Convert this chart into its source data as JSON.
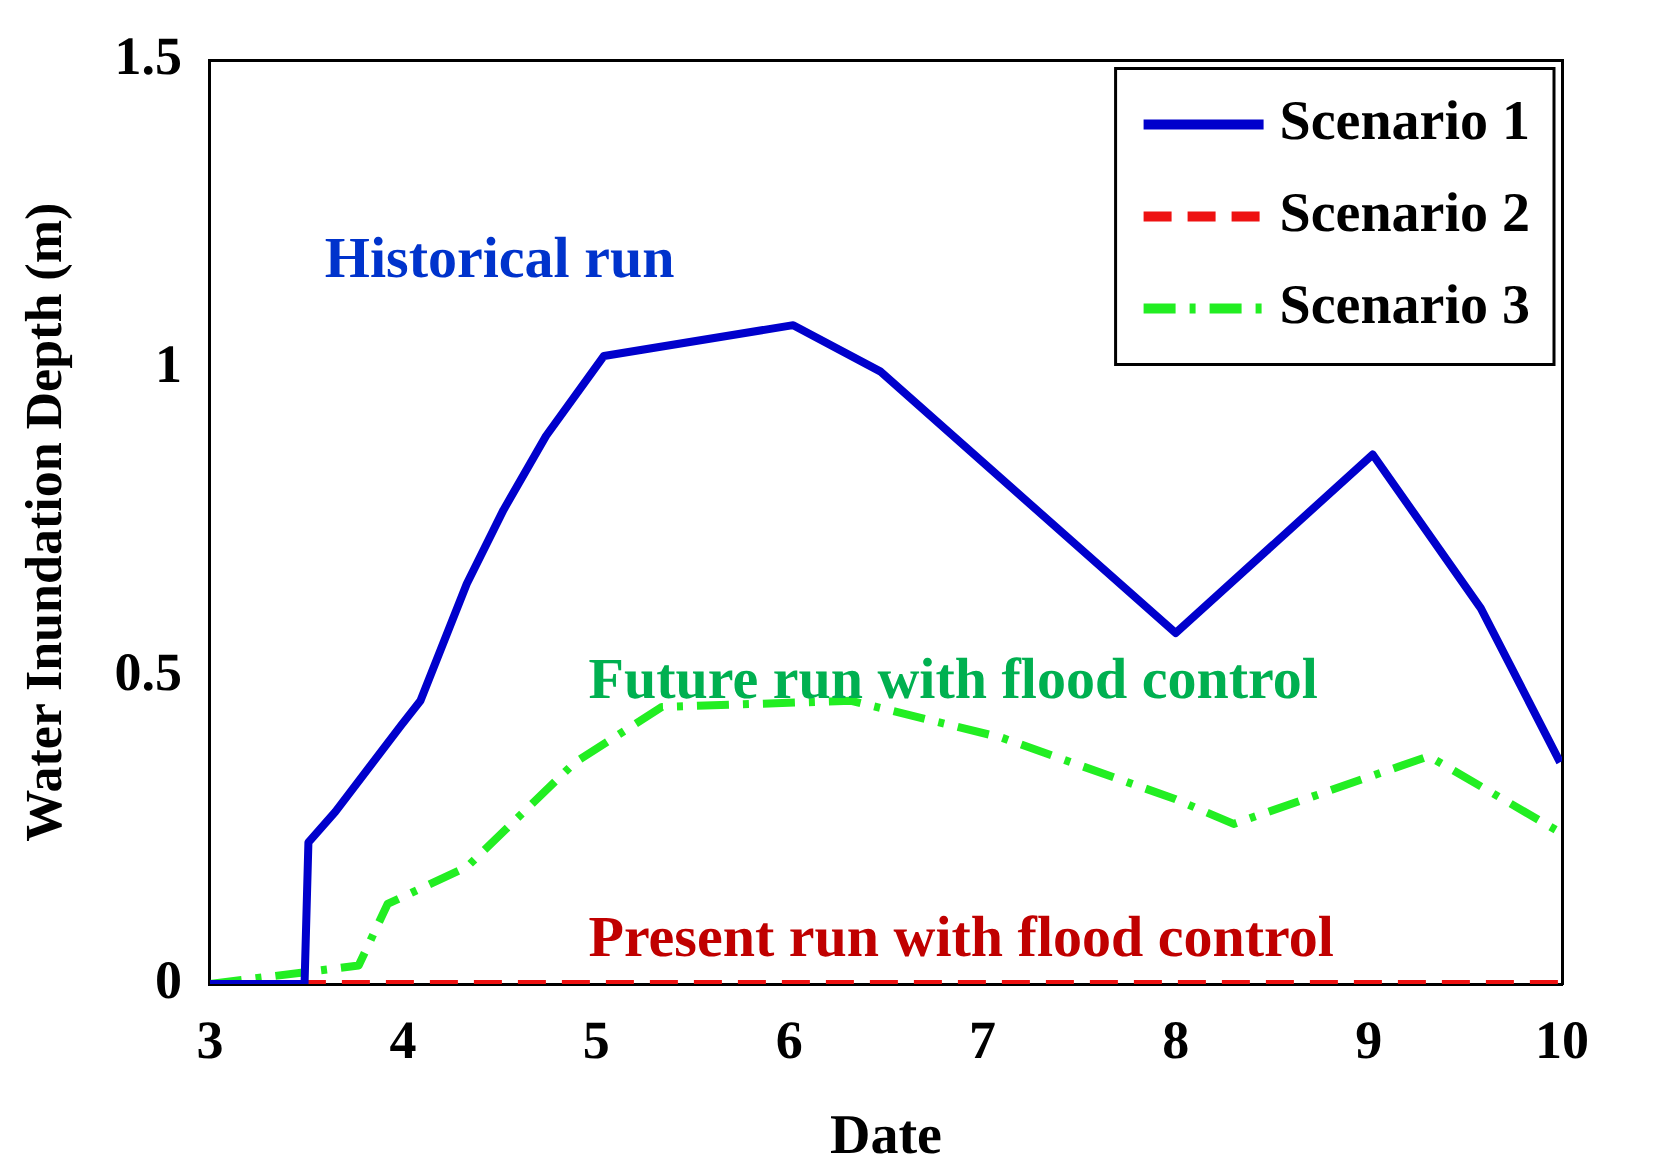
{
  "chart_data": {
    "type": "line",
    "xlabel": "Date",
    "ylabel": "Water Inundation Depth (m)",
    "xlim": [
      3,
      10
    ],
    "xticks": [
      3,
      4,
      5,
      6,
      7,
      8,
      9,
      10
    ],
    "ylim": [
      0,
      1.5
    ],
    "yticks": [
      0,
      0.5,
      1,
      1.5
    ],
    "legend": "top right",
    "grid": false,
    "marker": "none",
    "series": [
      {
        "name": "Scenario 1",
        "color": "#0000cc",
        "line_style": "solid",
        "x": [
          3,
          3.49,
          3.51,
          3.65,
          3.99,
          4.09,
          4.33,
          4.52,
          4.74,
          5.04,
          6.02,
          6.47,
          8.0,
          9.02,
          9.58,
          9.99
        ],
        "values": [
          0,
          0,
          0.23,
          0.28,
          0.42,
          0.46,
          0.65,
          0.77,
          0.89,
          1.02,
          1.07,
          0.995,
          0.57,
          0.86,
          0.61,
          0.36
        ]
      },
      {
        "name": "Scenario 2",
        "color": "#ee1111",
        "line_style": "dashed",
        "x": [
          3,
          10
        ],
        "values": [
          0,
          0
        ]
      },
      {
        "name": "Scenario 3",
        "color": "#22ee22",
        "line_style": "dashdot",
        "x": [
          3,
          3.77,
          3.92,
          4.33,
          4.89,
          5.34,
          6.32,
          7.1,
          8.0,
          8.3,
          9.31,
          9.97
        ],
        "values": [
          0,
          0.03,
          0.13,
          0.19,
          0.36,
          0.45,
          0.46,
          0.4,
          0.3,
          0.26,
          0.37,
          0.25
        ]
      }
    ],
    "annotations": [
      "Historical run",
      "Future run with flood control",
      "Present run with flood control"
    ]
  }
}
